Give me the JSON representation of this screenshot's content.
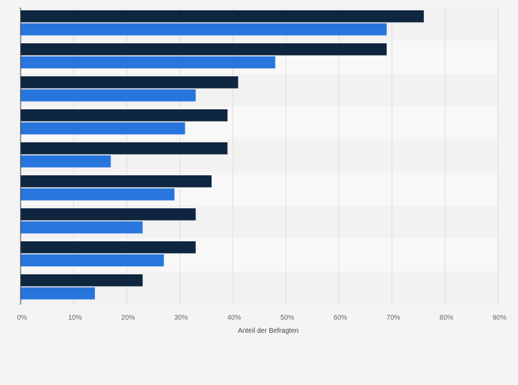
{
  "chart_data": {
    "type": "bar",
    "orientation": "horizontal",
    "categories": [
      "",
      "",
      "",
      "",
      "",
      "",
      "",
      "",
      ""
    ],
    "series": [
      {
        "color": "#0f2640",
        "values": [
          76,
          69,
          41,
          39,
          39,
          36,
          33,
          33,
          23
        ]
      },
      {
        "color": "#2876dd",
        "values": [
          69,
          48,
          33,
          31,
          17,
          29,
          23,
          27,
          14
        ]
      }
    ],
    "xlabel": "Anteil der Befragten",
    "ylabel": "",
    "xlim": [
      0,
      90
    ],
    "xticks": [
      "0%",
      "10%",
      "20%",
      "30%",
      "40%",
      "50%",
      "60%",
      "70%",
      "80%",
      "90%"
    ],
    "grid": "vertical",
    "legend": "none"
  }
}
